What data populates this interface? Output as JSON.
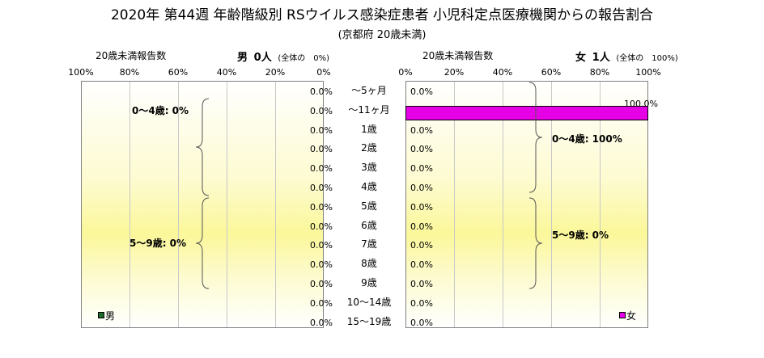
{
  "title": "2020年 第44週 年齢階級別 RSウイルス感染症患者 小児科定点医療機関からの報告割合",
  "subtitle": "(京都府 20歳未満)",
  "male_header": {
    "label": "20歳未満報告数",
    "sex": "男",
    "count": "0人",
    "share": "(全体の　0%)"
  },
  "female_header": {
    "label": "20歳未満報告数",
    "sex": "女",
    "count": "1人",
    "share": "(全体の　100%)"
  },
  "male_ticks": [
    "100%",
    "80%",
    "60%",
    "40%",
    "20%",
    "0%"
  ],
  "female_ticks": [
    "0%",
    "20%",
    "40%",
    "60%",
    "80%",
    "100%"
  ],
  "male_groups": [
    "0～4歳: 0%",
    "5～9歳: 0%"
  ],
  "female_groups": [
    "0～4歳: 100%",
    "5～9歳: 0%"
  ],
  "legend": {
    "male": "男",
    "female": "女"
  },
  "colors": {
    "male": "#1f6b2a",
    "female": "#e600e6"
  },
  "chart_data": {
    "type": "bar",
    "orientation": "horizontal",
    "categories": [
      "～5ヶ月",
      "～11ヶ月",
      "1歳",
      "2歳",
      "3歳",
      "4歳",
      "5歳",
      "6歳",
      "7歳",
      "8歳",
      "9歳",
      "10～14歳",
      "15～19歳"
    ],
    "series": [
      {
        "name": "男",
        "values": [
          0,
          0,
          0,
          0,
          0,
          0,
          0,
          0,
          0,
          0,
          0,
          0,
          0
        ],
        "labels": [
          "0.0%",
          "0.0%",
          "0.0%",
          "0.0%",
          "0.0%",
          "0.0%",
          "0.0%",
          "0.0%",
          "0.0%",
          "0.0%",
          "0.0%",
          "0.0%",
          "0.0%"
        ]
      },
      {
        "name": "女",
        "values": [
          0,
          100,
          0,
          0,
          0,
          0,
          0,
          0,
          0,
          0,
          0,
          0,
          0
        ],
        "labels": [
          "0.0%",
          "100.0%",
          "0.0%",
          "0.0%",
          "0.0%",
          "0.0%",
          "0.0%",
          "0.0%",
          "0.0%",
          "0.0%",
          "0.0%",
          "0.0%",
          "0.0%"
        ]
      }
    ],
    "xlim": [
      0,
      100
    ],
    "grid": true
  }
}
